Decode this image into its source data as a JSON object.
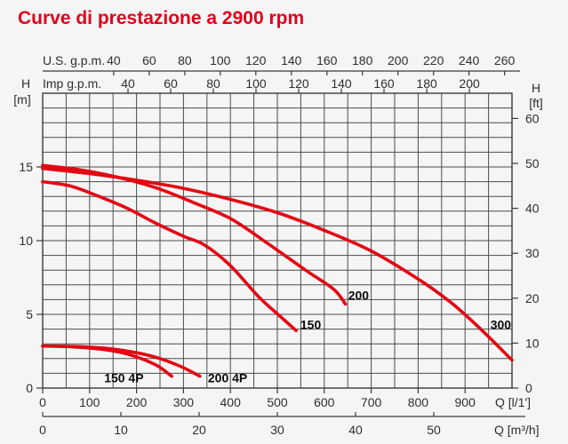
{
  "title": "Curve di prestazione a 2900 rpm",
  "colors": {
    "title_red": "#e2001a",
    "curve_red": "#e30613",
    "grid_gray": "#4b4b4b",
    "text_dark": "#2e2e2e",
    "background": "#f5f5f6"
  },
  "chart_data": {
    "type": "line",
    "title": "Curve di prestazione a 2900 rpm",
    "xlim_lpm": [
      0,
      1000
    ],
    "ylim_m": [
      0,
      20
    ],
    "grid": {
      "x_step_lpm": 50,
      "y_step_m": 1,
      "visible": true
    },
    "top_axes": [
      {
        "name": "usgpm",
        "label": "U.S. g.p.m.",
        "lpm_per_unit": 3.785,
        "ticks": [
          40,
          60,
          80,
          100,
          120,
          140,
          160,
          180,
          200,
          220,
          240,
          260
        ]
      },
      {
        "name": "impgpm",
        "label": "Imp g.p.m.",
        "lpm_per_unit": 4.546,
        "ticks": [
          40,
          60,
          80,
          100,
          120,
          140,
          160,
          180,
          200
        ]
      }
    ],
    "bottom_axes": [
      {
        "name": "lpm",
        "label": "Q [l/1']",
        "lpm_per_unit": 1,
        "ticks": [
          0,
          100,
          200,
          300,
          400,
          500,
          600,
          700,
          800,
          900
        ]
      },
      {
        "name": "m3h",
        "label": "Q [m³/h]",
        "lpm_per_unit": 16.6667,
        "ticks": [
          0,
          10,
          20,
          30,
          40,
          50
        ]
      }
    ],
    "y_axes": [
      {
        "name": "meters",
        "letter": "H",
        "unit": "[m]",
        "side": "left",
        "m_per_unit": 1,
        "ticks": [
          0,
          5,
          10,
          15
        ]
      },
      {
        "name": "feet",
        "letter": "H",
        "unit": "[ft]",
        "side": "right",
        "m_per_unit": 0.3048,
        "ticks": [
          0,
          10,
          20,
          30,
          40,
          50,
          60
        ]
      }
    ],
    "series": [
      {
        "name": "150",
        "label": "150",
        "label_at_lpm_m": [
          549,
          4.0
        ],
        "points": [
          [
            0,
            14.0
          ],
          [
            60,
            13.7
          ],
          [
            120,
            13.0
          ],
          [
            180,
            12.2
          ],
          [
            240,
            11.2
          ],
          [
            300,
            10.3
          ],
          [
            345,
            9.7
          ],
          [
            400,
            8.3
          ],
          [
            460,
            6.2
          ],
          [
            505,
            4.9
          ],
          [
            540,
            3.9
          ]
        ]
      },
      {
        "name": "200",
        "label": "200",
        "label_at_lpm_m": [
          651,
          6.0
        ],
        "points": [
          [
            0,
            15.1
          ],
          [
            80,
            14.8
          ],
          [
            160,
            14.3
          ],
          [
            240,
            13.6
          ],
          [
            320,
            12.6
          ],
          [
            400,
            11.5
          ],
          [
            480,
            9.8
          ],
          [
            560,
            8.0
          ],
          [
            620,
            6.7
          ],
          [
            645,
            5.7
          ]
        ]
      },
      {
        "name": "300",
        "label": "300",
        "label_at_lpm_m": [
          954,
          4.0
        ],
        "points": [
          [
            0,
            14.9
          ],
          [
            100,
            14.55
          ],
          [
            200,
            14.1
          ],
          [
            300,
            13.55
          ],
          [
            400,
            12.8
          ],
          [
            500,
            11.9
          ],
          [
            600,
            10.7
          ],
          [
            700,
            9.3
          ],
          [
            800,
            7.4
          ],
          [
            870,
            5.8
          ],
          [
            930,
            4.1
          ],
          [
            1000,
            1.9
          ]
        ]
      },
      {
        "name": "150 4P",
        "label": "150 4P",
        "label_at_lpm_m": [
          131,
          0.4
        ],
        "points": [
          [
            0,
            2.85
          ],
          [
            60,
            2.8
          ],
          [
            120,
            2.65
          ],
          [
            170,
            2.4
          ],
          [
            210,
            2.0
          ],
          [
            245,
            1.5
          ],
          [
            275,
            0.8
          ]
        ]
      },
      {
        "name": "200 4P",
        "label": "200 4P",
        "label_at_lpm_m": [
          352,
          0.4
        ],
        "points": [
          [
            0,
            2.85
          ],
          [
            70,
            2.82
          ],
          [
            140,
            2.68
          ],
          [
            200,
            2.4
          ],
          [
            250,
            2.0
          ],
          [
            295,
            1.45
          ],
          [
            335,
            0.8
          ]
        ]
      }
    ]
  }
}
